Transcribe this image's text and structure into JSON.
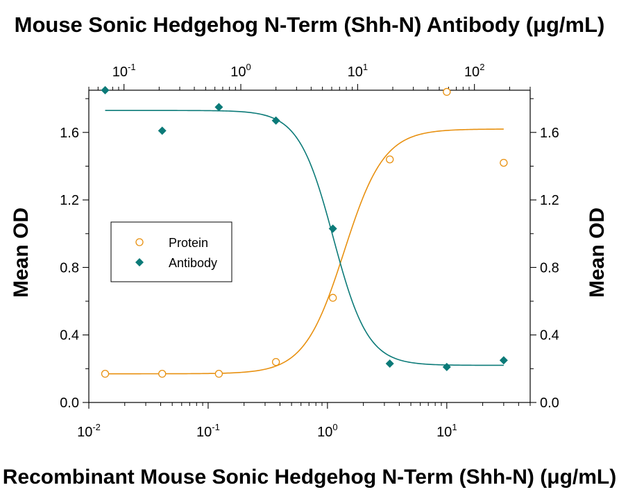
{
  "chart_data": {
    "type": "scatter",
    "title": "Mouse Sonic Hedgehog N-Term (Shh-N) Antibody (μg/mL)",
    "xlabel": "Recombinant Mouse Sonic Hedgehog N-Term (Shh-N) (μg/mL)",
    "ylabel": "Mean OD",
    "ylabel_right": "Mean OD",
    "x_scale": "log",
    "xlim": [
      0.01,
      50
    ],
    "x_ticks": [
      {
        "base": "10",
        "exp": "-2",
        "value": 0.01
      },
      {
        "base": "10",
        "exp": "-1",
        "value": 0.1
      },
      {
        "base": "10",
        "exp": "0",
        "value": 1
      },
      {
        "base": "10",
        "exp": "1",
        "value": 10
      }
    ],
    "top_axis": {
      "scale": "log",
      "xlim": [
        0.05,
        300
      ],
      "ticks": [
        {
          "base": "10",
          "exp": "-1",
          "value": 0.1
        },
        {
          "base": "10",
          "exp": "0",
          "value": 1
        },
        {
          "base": "10",
          "exp": "1",
          "value": 10
        },
        {
          "base": "10",
          "exp": "2",
          "value": 100
        }
      ]
    },
    "ylim": [
      0,
      1.85
    ],
    "y_ticks": [
      "0.0",
      "0.4",
      "0.8",
      "1.2",
      "1.6"
    ],
    "grid": false,
    "legend_position": "left-center",
    "series": [
      {
        "name": "Protein",
        "marker": "open-circle",
        "color": "#E8900F",
        "x": [
          0.0137,
          0.0412,
          0.123,
          0.37,
          1.11,
          3.33,
          10,
          30
        ],
        "y": [
          0.17,
          0.17,
          0.17,
          0.24,
          0.62,
          1.44,
          1.84,
          1.42
        ],
        "fit": {
          "bottom": 0.17,
          "top": 1.62,
          "ec50": 1.38,
          "hill": 2.6
        }
      },
      {
        "name": "Antibody",
        "marker": "filled-diamond",
        "color": "#0B7A78",
        "x": [
          0.0137,
          0.0412,
          0.123,
          0.37,
          1.11,
          3.33,
          10,
          30
        ],
        "y": [
          1.85,
          1.61,
          1.75,
          1.67,
          1.03,
          0.23,
          0.21,
          0.25
        ],
        "fit": {
          "bottom": 0.22,
          "top": 1.73,
          "ec50": 1.12,
          "hill": -3.0
        }
      }
    ]
  }
}
